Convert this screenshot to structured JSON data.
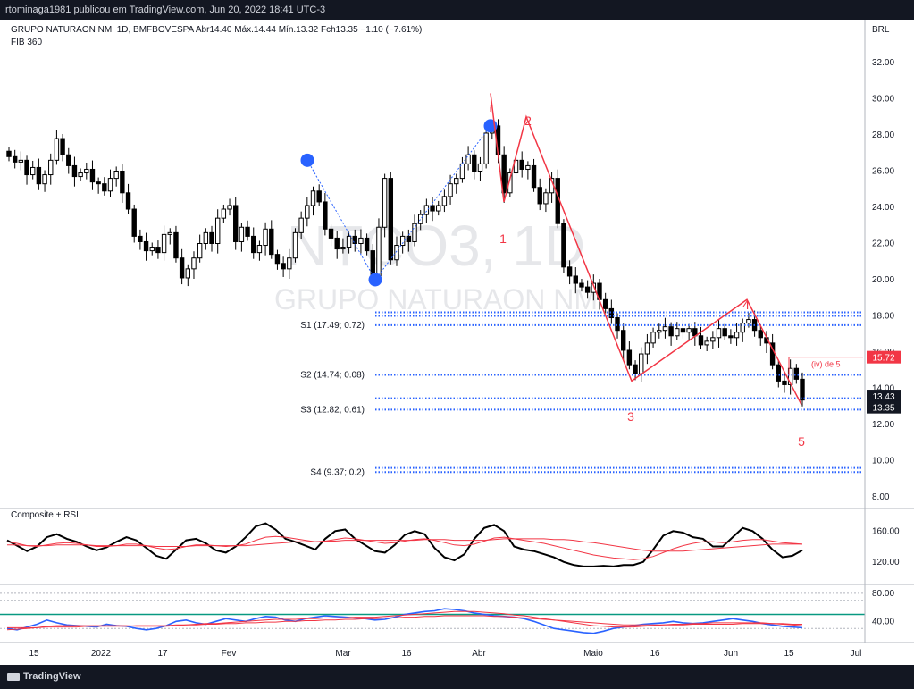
{
  "header": {
    "publish_line": "rtominaga1981 publicou em TradingView.com, Jun 20, 2022 18:41 UTC-3"
  },
  "legend": {
    "symbol_line": "GRUPO NATURAON NM, 1D, BMFBOVESPA  Abr14.40  Máx.14.44  Mín.13.32  Fch13.35  −1.10 (−7.61%)",
    "indicator": "FIB 360",
    "currency": "BRL"
  },
  "watermark": {
    "ticker": "NTCO3, 1D",
    "name": "GRUPO NATURAON NM"
  },
  "footer": {
    "brand": "TradingView"
  },
  "colors": {
    "background": "#ffffff",
    "bar": "#000000",
    "wave": "#f23645",
    "pivot_line": "#2962ff",
    "marker": "#2962ff",
    "rsi_line": "#000000",
    "rsi_ma": "#f23645",
    "blue_line": "#2962ff",
    "green_level": "#089981"
  },
  "chart_data": [
    {
      "type": "candlestick",
      "title": "GRUPO NATURAON NM, 1D, BMFBOVESPA",
      "ylabel": "BRL",
      "ylim": [
        8,
        33
      ],
      "y_ticks": [
        8,
        10,
        12,
        14,
        16,
        18,
        20,
        22,
        24,
        26,
        28,
        30,
        32
      ],
      "x_ticks": [
        "15",
        "2022",
        "17",
        "Fev",
        "Mar",
        "16",
        "Abr",
        "Maio",
        "16",
        "Jun",
        "15",
        "Jul"
      ],
      "ohlc": {
        "open": 14.4,
        "high": 14.44,
        "low": 13.32,
        "close": 13.35,
        "change": "−1.10",
        "change_pct": "−7.61%"
      },
      "closes": [
        26.8,
        26.5,
        26.6,
        25.8,
        26.2,
        25.3,
        25.8,
        26.6,
        27.8,
        26.9,
        26.3,
        25.7,
        25.9,
        26.1,
        25.4,
        25.3,
        24.9,
        25.6,
        26.0,
        24.8,
        23.9,
        22.4,
        22.1,
        21.6,
        21.8,
        21.5,
        22.5,
        22.6,
        21.2,
        20.1,
        20.6,
        21.2,
        22.0,
        22.6,
        22.0,
        23.4,
        23.9,
        24.1,
        22.1,
        22.9,
        22.4,
        21.5,
        21.9,
        22.8,
        21.4,
        20.9,
        20.6,
        21.2,
        22.6,
        23.4,
        24.1,
        24.9,
        24.3,
        22.8,
        22.3,
        21.7,
        21.8,
        22.4,
        22.0,
        22.3,
        21.6,
        20.2,
        22.9,
        25.6,
        21.1,
        21.9,
        22.4,
        22.1,
        23.1,
        23.6,
        24.1,
        23.8,
        24.1,
        24.6,
        25.3,
        25.6,
        26.4,
        26.9,
        26.0,
        26.4,
        28.1,
        28.5,
        26.9,
        24.8,
        25.9,
        26.6,
        26.1,
        26.3,
        25.1,
        24.2,
        24.8,
        25.6,
        23.1,
        20.7,
        20.2,
        19.8,
        19.6,
        19.3,
        19.8,
        18.9,
        18.4,
        17.9,
        17.2,
        16.1,
        15.3,
        14.8,
        15.9,
        16.5,
        17.1,
        17.2,
        17.4,
        16.9,
        17.3,
        17.1,
        17.3,
        16.9,
        16.4,
        16.6,
        16.8,
        17.3,
        16.9,
        16.8,
        17.1,
        17.6,
        17.8,
        17.2,
        16.8,
        16.5,
        15.3,
        14.4,
        14.2,
        15.1,
        14.5,
        13.35
      ],
      "levels": [
        {
          "label": "S1 (17.49; 0.72)",
          "value": 17.49
        },
        {
          "label": "S2 (14.74; 0.08)",
          "value": 14.74
        },
        {
          "label": "S3 (12.82; 0.61)",
          "value": 12.82
        },
        {
          "label": "S4 (9.37; 0.2)",
          "value": 9.37
        }
      ],
      "extra_levels": [
        18.2,
        18.0,
        13.45,
        9.6
      ],
      "waves": [
        {
          "label": "1",
          "price": 24.3
        },
        {
          "label": "2",
          "price": 29.0
        },
        {
          "label": "3",
          "price": 14.4
        },
        {
          "label": "4",
          "price": 18.9
        },
        {
          "label": "5",
          "price": 13.1
        }
      ],
      "annotation": {
        "label": "(iv) de 5",
        "price": 15.72
      },
      "price_tags": [
        {
          "label": "15.72",
          "value": 15.72
        },
        {
          "label": "13.43",
          "value": 13.43
        },
        {
          "label": "13.35",
          "value": 13.35
        }
      ]
    },
    {
      "type": "line",
      "title": "Composite + RSI",
      "ylim": [
        100,
        180
      ],
      "y_ticks": [
        120,
        160
      ],
      "series": [
        {
          "values": [
            148,
            141,
            134,
            140,
            152,
            156,
            150,
            146,
            140,
            135,
            139,
            146,
            152,
            148,
            138,
            128,
            124,
            136,
            148,
            150,
            144,
            135,
            132,
            140,
            152,
            166,
            170,
            162,
            150,
            146,
            141,
            136,
            150,
            160,
            162,
            150,
            142,
            134,
            132,
            142,
            155,
            160,
            156,
            138,
            126,
            122,
            130,
            150,
            164,
            168,
            160,
            140,
            136,
            134,
            130,
            126,
            120,
            116,
            114,
            114,
            115,
            114,
            116,
            116,
            120,
            136,
            154,
            160,
            158,
            152,
            150,
            140,
            140,
            152,
            164,
            160,
            150,
            136,
            126,
            128,
            135
          ]
        },
        {
          "values": [
            146,
            144,
            141,
            140,
            142,
            144,
            145,
            144,
            142,
            140,
            140,
            141,
            143,
            143,
            141,
            138,
            136,
            137,
            140,
            142,
            142,
            141,
            140,
            141,
            143,
            148,
            152,
            153,
            152,
            150,
            148,
            146,
            147,
            149,
            151,
            150,
            148,
            146,
            144,
            145,
            147,
            149,
            150,
            148,
            145,
            142,
            141,
            143,
            147,
            151,
            152,
            150,
            148,
            146,
            144,
            141,
            138,
            135,
            132,
            129,
            127,
            125,
            124,
            123,
            124,
            127,
            132,
            137,
            141,
            144,
            146,
            146,
            145,
            146,
            148,
            149,
            149,
            147,
            145,
            144,
            143
          ]
        },
        {
          "values": [
            142,
            142,
            141,
            141,
            141,
            142,
            142,
            142,
            142,
            141,
            141,
            141,
            141,
            141,
            141,
            140,
            140,
            140,
            140,
            141,
            141,
            141,
            141,
            141,
            141,
            142,
            143,
            144,
            145,
            146,
            146,
            146,
            147,
            147,
            148,
            148,
            148,
            148,
            148,
            148,
            148,
            148,
            149,
            149,
            149,
            148,
            148,
            148,
            148,
            149,
            150,
            150,
            150,
            150,
            150,
            149,
            149,
            148,
            146,
            145,
            143,
            141,
            139,
            137,
            135,
            134,
            134,
            134,
            134,
            135,
            136,
            137,
            138,
            139,
            140,
            141,
            142,
            143,
            143,
            143,
            143
          ]
        }
      ]
    },
    {
      "type": "line",
      "ylim": [
        15,
        90
      ],
      "y_ticks": [
        40,
        80
      ],
      "reference_levels": [
        30,
        50,
        70,
        80
      ],
      "series": [
        {
          "values": [
            30,
            28,
            32,
            36,
            42,
            38,
            35,
            34,
            33,
            32,
            36,
            34,
            33,
            30,
            28,
            30,
            34,
            40,
            42,
            38,
            36,
            40,
            44,
            42,
            40,
            44,
            47,
            46,
            42,
            40,
            44,
            46,
            48,
            47,
            46,
            45,
            44,
            42,
            43,
            46,
            50,
            52,
            54,
            55,
            58,
            57,
            55,
            52,
            50,
            48,
            47,
            46,
            44,
            40,
            35,
            30,
            28,
            26,
            24,
            23,
            26,
            30,
            32,
            34,
            36,
            37,
            38,
            40,
            38,
            37,
            38,
            40,
            42,
            44,
            42,
            40,
            37,
            35,
            33,
            32,
            31
          ]
        },
        {
          "values": [
            28,
            29,
            30,
            31,
            33,
            34,
            34,
            34,
            34,
            34,
            34,
            34,
            34,
            33,
            33,
            33,
            33,
            34,
            35,
            36,
            37,
            37,
            38,
            39,
            40,
            41,
            42,
            43,
            43,
            43,
            44,
            44,
            45,
            45,
            45,
            46,
            46,
            46,
            47,
            48,
            49,
            50,
            51,
            52,
            53,
            54,
            54,
            54,
            53,
            52,
            51,
            49,
            48,
            46,
            44,
            42,
            40,
            38,
            36,
            34,
            33,
            32,
            32,
            32,
            33,
            34,
            35,
            36,
            36,
            37,
            37,
            38,
            38,
            38,
            38,
            38,
            38,
            37,
            36,
            35,
            34
          ]
        },
        {
          "values": [
            31,
            31,
            31,
            31,
            32,
            32,
            32,
            32,
            33,
            33,
            33,
            33,
            33,
            34,
            34,
            34,
            34,
            35,
            35,
            35,
            36,
            36,
            37,
            37,
            38,
            38,
            39,
            39,
            40,
            40,
            41,
            41,
            42,
            42,
            43,
            43,
            44,
            44,
            45,
            45,
            46,
            46,
            47,
            47,
            48,
            48,
            48,
            48,
            48,
            47,
            47,
            46,
            45,
            44,
            43,
            42,
            41,
            40,
            39,
            38,
            37,
            36,
            35,
            35,
            35,
            35,
            35,
            35,
            35,
            36,
            36,
            36,
            36,
            36,
            37,
            37,
            37,
            37,
            37,
            36,
            36
          ]
        }
      ]
    }
  ]
}
